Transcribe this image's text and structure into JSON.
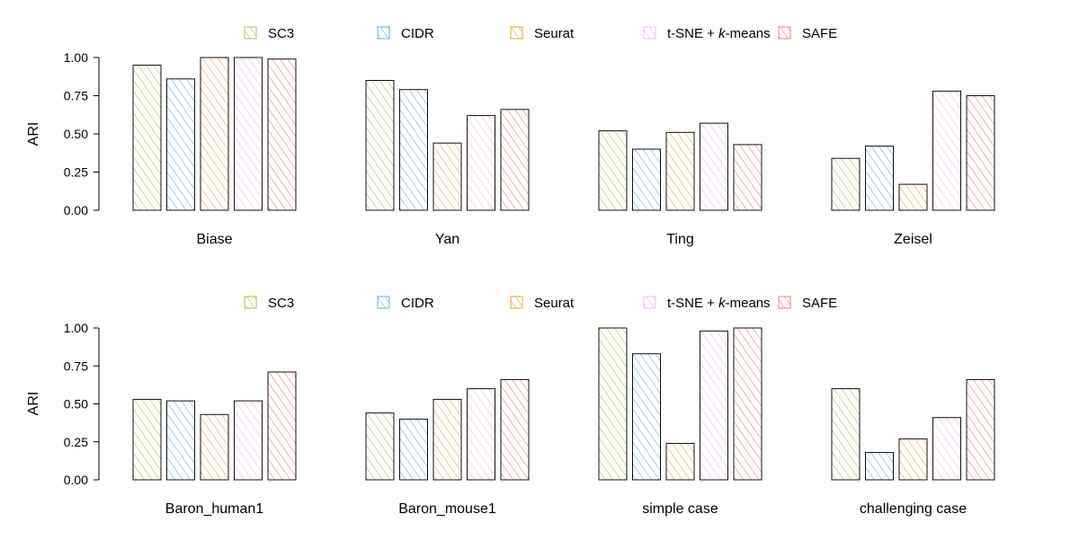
{
  "chart_data": [
    {
      "type": "bar",
      "panel": "top",
      "ylabel": "ARI",
      "ylim": [
        0,
        1
      ],
      "yticks": [
        "0.00",
        "0.25",
        "0.50",
        "0.75",
        "1.00"
      ],
      "categories": [
        "Biase",
        "Yan",
        "Ting",
        "Zeisel"
      ],
      "series": [
        {
          "name": "SC3",
          "values": [
            0.95,
            0.85,
            0.52,
            0.34
          ]
        },
        {
          "name": "CIDR",
          "values": [
            0.86,
            0.79,
            0.4,
            0.42
          ]
        },
        {
          "name": "Seurat",
          "values": [
            1.0,
            0.44,
            0.51,
            0.17
          ]
        },
        {
          "name": "t-SNE + k-means",
          "values": [
            1.0,
            0.62,
            0.57,
            0.78
          ]
        },
        {
          "name": "SAFE",
          "values": [
            0.99,
            0.66,
            0.43,
            0.75
          ]
        }
      ],
      "legend_position": "top"
    },
    {
      "type": "bar",
      "panel": "bottom",
      "ylabel": "ARI",
      "ylim": [
        0,
        1
      ],
      "yticks": [
        "0.00",
        "0.25",
        "0.50",
        "0.75",
        "1.00"
      ],
      "categories": [
        "Baron_human1",
        "Baron_mouse1",
        "simple case",
        "challenging case"
      ],
      "series": [
        {
          "name": "SC3",
          "values": [
            0.53,
            0.44,
            1.0,
            0.6
          ]
        },
        {
          "name": "CIDR",
          "values": [
            0.52,
            0.4,
            0.83,
            0.18
          ]
        },
        {
          "name": "Seurat",
          "values": [
            0.43,
            0.53,
            0.24,
            0.27
          ]
        },
        {
          "name": "t-SNE + k-means",
          "values": [
            0.52,
            0.6,
            0.98,
            0.41
          ]
        },
        {
          "name": "SAFE",
          "values": [
            0.71,
            0.66,
            1.0,
            0.66
          ]
        }
      ],
      "legend_position": "top"
    }
  ],
  "colors": {
    "SC3": "#9ccc3c",
    "CIDR": "#6aaed6",
    "Seurat": "#e8a838",
    "t-SNE + k-means": "#f2b8ea",
    "SAFE": "#e7837a"
  }
}
